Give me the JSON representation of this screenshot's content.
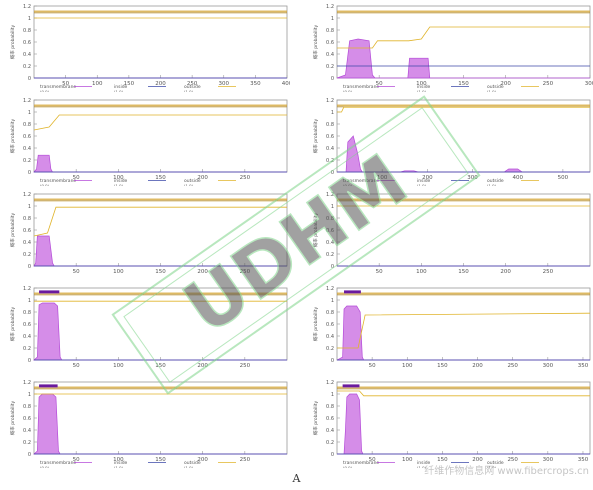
{
  "figure_label": "A",
  "watermark": {
    "text": "纤维作物信息网 www.fibercrops.cn",
    "stamp": "UDHM"
  },
  "colors": {
    "transmembrane": "#b44bd8",
    "transmembrane_fill": "#d58de8",
    "transmembrane_bar": "#6a1a9e",
    "inside": "#3b49a8",
    "outside": "#e0b42b",
    "axis": "#9a9a9a",
    "top_line": "#d4a430",
    "top_line_dark": "#b5881e"
  },
  "legend": {
    "items": [
      {
        "name": "transmembrane",
        "note": "(0.0)"
      },
      {
        "name": "inside",
        "note": "(1.0)"
      },
      {
        "name": "outside",
        "note": "(1.0)"
      }
    ]
  },
  "ylabel": "概率 probability",
  "chart_data": [
    {
      "type": "line",
      "panel": 1,
      "xlim": [
        0,
        400
      ],
      "ylim": [
        0,
        1.2
      ],
      "xticks": [
        50,
        100,
        150,
        200,
        250,
        300,
        350,
        400
      ],
      "yticks": [
        0,
        0.2,
        0.4,
        0.6,
        0.8,
        1,
        1.2
      ],
      "topline": true,
      "show_legend": true,
      "membrane_bars": [],
      "series": [
        {
          "name": "transmembrane",
          "kind": "fill",
          "points": [
            [
              0,
              0
            ],
            [
              400,
              0
            ]
          ]
        },
        {
          "name": "outside",
          "kind": "line",
          "points": [
            [
              0,
              1.0
            ],
            [
              400,
              1.0
            ]
          ]
        },
        {
          "name": "inside",
          "kind": "line",
          "points": [
            [
              0,
              0
            ],
            [
              400,
              0
            ]
          ]
        }
      ]
    },
    {
      "type": "line",
      "panel": 2,
      "xlim": [
        0,
        300
      ],
      "ylim": [
        0,
        1.2
      ],
      "xticks": [
        50,
        100,
        150,
        200,
        250,
        300
      ],
      "yticks": [
        0,
        0.2,
        0.4,
        0.6,
        0.8,
        1,
        1.2
      ],
      "topline": true,
      "show_legend": true,
      "membrane_bars": [],
      "series": [
        {
          "name": "transmembrane",
          "kind": "fill",
          "points": [
            [
              0,
              0
            ],
            [
              10,
              0.05
            ],
            [
              15,
              0.62
            ],
            [
              25,
              0.65
            ],
            [
              38,
              0.62
            ],
            [
              42,
              0.05
            ],
            [
              45,
              0
            ],
            [
              84,
              0
            ],
            [
              86,
              0.33
            ],
            [
              108,
              0.33
            ],
            [
              110,
              0
            ],
            [
              300,
              0
            ]
          ]
        },
        {
          "name": "outside",
          "kind": "line",
          "points": [
            [
              0,
              0.5
            ],
            [
              42,
              0.5
            ],
            [
              48,
              0.62
            ],
            [
              85,
              0.62
            ],
            [
              100,
              0.65
            ],
            [
              110,
              0.85
            ],
            [
              300,
              0.85
            ]
          ]
        },
        {
          "name": "inside",
          "kind": "line",
          "points": [
            [
              0,
              0.2
            ],
            [
              300,
              0.2
            ]
          ]
        }
      ]
    },
    {
      "type": "line",
      "panel": 3,
      "xlim": [
        0,
        300
      ],
      "ylim": [
        0,
        1.2
      ],
      "xticks": [
        50,
        100,
        150,
        200,
        250
      ],
      "yticks": [
        0,
        0.2,
        0.4,
        0.6,
        0.8,
        1,
        1.2
      ],
      "topline": true,
      "show_legend": true,
      "membrane_bars": [],
      "series": [
        {
          "name": "transmembrane",
          "kind": "fill",
          "points": [
            [
              0,
              0
            ],
            [
              3,
              0.05
            ],
            [
              5,
              0.28
            ],
            [
              18,
              0.28
            ],
            [
              20,
              0.05
            ],
            [
              22,
              0
            ],
            [
              300,
              0
            ]
          ]
        },
        {
          "name": "outside",
          "kind": "line",
          "points": [
            [
              0,
              0.7
            ],
            [
              18,
              0.75
            ],
            [
              30,
              0.95
            ],
            [
              300,
              0.95
            ]
          ]
        },
        {
          "name": "inside",
          "kind": "line",
          "points": [
            [
              0,
              0
            ],
            [
              300,
              0
            ]
          ]
        }
      ]
    },
    {
      "type": "line",
      "panel": 4,
      "xlim": [
        0,
        560
      ],
      "ylim": [
        0,
        1.2
      ],
      "xticks": [
        100,
        200,
        300,
        400,
        500
      ],
      "yticks": [
        0,
        0.2,
        0.4,
        0.6,
        0.8,
        1,
        1.2
      ],
      "topline": true,
      "show_legend": true,
      "membrane_bars": [],
      "series": [
        {
          "name": "transmembrane",
          "kind": "fill",
          "points": [
            [
              0,
              0
            ],
            [
              20,
              0
            ],
            [
              24,
              0.5
            ],
            [
              36,
              0.6
            ],
            [
              46,
              0.3
            ],
            [
              52,
              0.05
            ],
            [
              56,
              0
            ],
            [
              140,
              0
            ],
            [
              150,
              0.02
            ],
            [
              170,
              0.02
            ],
            [
              180,
              0
            ],
            [
              370,
              0
            ],
            [
              380,
              0.05
            ],
            [
              400,
              0.05
            ],
            [
              410,
              0
            ],
            [
              560,
              0
            ]
          ]
        },
        {
          "name": "outside",
          "kind": "line",
          "points": [
            [
              0,
              1.0
            ],
            [
              10,
              1.0
            ],
            [
              15,
              1.08
            ],
            [
              560,
              1.08
            ]
          ]
        },
        {
          "name": "inside",
          "kind": "line",
          "points": [
            [
              0,
              0
            ],
            [
              560,
              0
            ]
          ]
        }
      ]
    },
    {
      "type": "line",
      "panel": 5,
      "xlim": [
        0,
        300
      ],
      "ylim": [
        0,
        1.2
      ],
      "xticks": [
        50,
        100,
        150,
        200,
        250
      ],
      "yticks": [
        0,
        0.2,
        0.4,
        0.6,
        0.8,
        1,
        1.2
      ],
      "topline": true,
      "show_legend": false,
      "membrane_bars": [],
      "series": [
        {
          "name": "transmembrane",
          "kind": "fill",
          "points": [
            [
              0,
              0
            ],
            [
              2,
              0.05
            ],
            [
              4,
              0.5
            ],
            [
              18,
              0.5
            ],
            [
              22,
              0.05
            ],
            [
              24,
              0
            ],
            [
              300,
              0
            ]
          ]
        },
        {
          "name": "outside",
          "kind": "line",
          "points": [
            [
              0,
              0.5
            ],
            [
              16,
              0.55
            ],
            [
              26,
              0.98
            ],
            [
              300,
              0.98
            ]
          ]
        },
        {
          "name": "inside",
          "kind": "line",
          "points": [
            [
              0,
              0
            ],
            [
              300,
              0
            ]
          ]
        }
      ]
    },
    {
      "type": "line",
      "panel": 6,
      "xlim": [
        0,
        300
      ],
      "ylim": [
        0,
        1.2
      ],
      "xticks": [
        50,
        100,
        150,
        200,
        250
      ],
      "yticks": [
        0,
        0.2,
        0.4,
        0.6,
        0.8,
        1,
        1.2
      ],
      "topline": true,
      "show_legend": false,
      "membrane_bars": [],
      "series": [
        {
          "name": "transmembrane",
          "kind": "fill",
          "points": [
            [
              0,
              0
            ],
            [
              300,
              0
            ]
          ]
        },
        {
          "name": "outside",
          "kind": "line",
          "points": [
            [
              0,
              1.0
            ],
            [
              300,
              1.0
            ]
          ]
        },
        {
          "name": "inside",
          "kind": "line",
          "points": [
            [
              0,
              0
            ],
            [
              300,
              0
            ]
          ]
        }
      ]
    },
    {
      "type": "line",
      "panel": 7,
      "xlim": [
        0,
        300
      ],
      "ylim": [
        0,
        1.2
      ],
      "xticks": [
        50,
        100,
        150,
        200,
        250
      ],
      "yticks": [
        0,
        0.2,
        0.4,
        0.6,
        0.8,
        1,
        1.2
      ],
      "topline": true,
      "show_legend": false,
      "membrane_bars": [
        [
          6,
          30
        ]
      ],
      "series": [
        {
          "name": "transmembrane",
          "kind": "fill",
          "points": [
            [
              0,
              0
            ],
            [
              4,
              0.05
            ],
            [
              6,
              0.92
            ],
            [
              10,
              0.95
            ],
            [
              24,
              0.95
            ],
            [
              28,
              0.9
            ],
            [
              31,
              0.05
            ],
            [
              33,
              0
            ],
            [
              300,
              0
            ]
          ]
        },
        {
          "name": "outside",
          "kind": "line",
          "points": [
            [
              0,
              0.98
            ],
            [
              300,
              0.98
            ]
          ]
        },
        {
          "name": "inside",
          "kind": "line",
          "points": [
            [
              0,
              0
            ],
            [
              300,
              0
            ]
          ]
        }
      ]
    },
    {
      "type": "line",
      "panel": 8,
      "xlim": [
        0,
        360
      ],
      "ylim": [
        0,
        1.2
      ],
      "xticks": [
        50,
        100,
        150,
        200,
        250,
        300,
        350
      ],
      "yticks": [
        0,
        0.2,
        0.4,
        0.6,
        0.8,
        1,
        1.2
      ],
      "topline": true,
      "show_legend": false,
      "membrane_bars": [
        [
          10,
          34
        ]
      ],
      "series": [
        {
          "name": "transmembrane",
          "kind": "fill",
          "points": [
            [
              0,
              0
            ],
            [
              8,
              0.05
            ],
            [
              10,
              0.85
            ],
            [
              14,
              0.9
            ],
            [
              28,
              0.9
            ],
            [
              33,
              0.8
            ],
            [
              36,
              0.05
            ],
            [
              38,
              0
            ],
            [
              360,
              0
            ]
          ]
        },
        {
          "name": "outside",
          "kind": "line",
          "points": [
            [
              0,
              0.2
            ],
            [
              30,
              0.2
            ],
            [
              40,
              0.75
            ],
            [
              360,
              0.78
            ]
          ]
        },
        {
          "name": "inside",
          "kind": "line",
          "points": [
            [
              0,
              0
            ],
            [
              360,
              0
            ]
          ]
        }
      ]
    },
    {
      "type": "line",
      "panel": 9,
      "xlim": [
        0,
        300
      ],
      "ylim": [
        0,
        1.2
      ],
      "xticks": [
        50,
        100,
        150,
        200,
        250
      ],
      "yticks": [
        0,
        0.2,
        0.4,
        0.6,
        0.8,
        1,
        1.2
      ],
      "topline": true,
      "show_legend": true,
      "membrane_bars": [
        [
          6,
          28
        ]
      ],
      "series": [
        {
          "name": "transmembrane",
          "kind": "fill",
          "points": [
            [
              0,
              0
            ],
            [
              4,
              0.05
            ],
            [
              6,
              0.95
            ],
            [
              10,
              1.0
            ],
            [
              22,
              1.0
            ],
            [
              26,
              0.95
            ],
            [
              29,
              0.05
            ],
            [
              31,
              0
            ],
            [
              300,
              0
            ]
          ]
        },
        {
          "name": "outside",
          "kind": "line",
          "points": [
            [
              0,
              1.0
            ],
            [
              300,
              1.0
            ]
          ]
        },
        {
          "name": "inside",
          "kind": "line",
          "points": [
            [
              0,
              0
            ],
            [
              300,
              0
            ]
          ]
        }
      ]
    },
    {
      "type": "line",
      "panel": 10,
      "xlim": [
        0,
        360
      ],
      "ylim": [
        0,
        1.2
      ],
      "xticks": [
        50,
        100,
        150,
        200,
        250,
        300,
        350
      ],
      "yticks": [
        0,
        0.2,
        0.4,
        0.6,
        0.8,
        1,
        1.2
      ],
      "topline": true,
      "show_legend": true,
      "membrane_bars": [
        [
          8,
          32
        ]
      ],
      "series": [
        {
          "name": "transmembrane",
          "kind": "fill",
          "points": [
            [
              0,
              0
            ],
            [
              10,
              0
            ],
            [
              12,
              0.4
            ],
            [
              14,
              0.95
            ],
            [
              18,
              1.0
            ],
            [
              28,
              1.0
            ],
            [
              32,
              0.9
            ],
            [
              35,
              0.05
            ],
            [
              37,
              0
            ],
            [
              360,
              0
            ]
          ]
        },
        {
          "name": "outside",
          "kind": "line",
          "points": [
            [
              0,
              1.05
            ],
            [
              32,
              1.05
            ],
            [
              38,
              0.97
            ],
            [
              360,
              0.97
            ]
          ]
        },
        {
          "name": "inside",
          "kind": "line",
          "points": [
            [
              0,
              0
            ],
            [
              360,
              0
            ]
          ]
        }
      ]
    }
  ]
}
